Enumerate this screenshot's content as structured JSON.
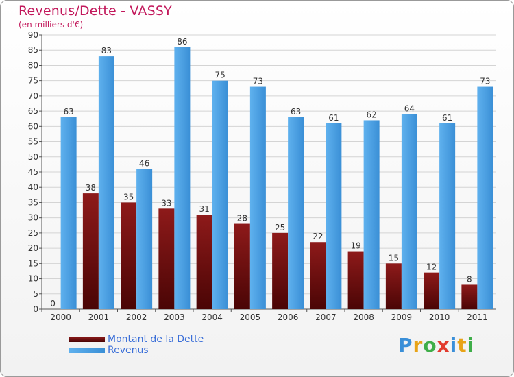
{
  "chart_data": {
    "type": "bar",
    "title": "Revenus/Dette - VASSY",
    "subtitle": "(en milliers d'€)",
    "categories": [
      "2000",
      "2001",
      "2002",
      "2003",
      "2004",
      "2005",
      "2006",
      "2007",
      "2008",
      "2009",
      "2010",
      "2011"
    ],
    "series": [
      {
        "name": "Montant de la Dette",
        "color": "#7a0f0f",
        "values": [
          0,
          38,
          35,
          33,
          31,
          28,
          25,
          22,
          19,
          15,
          12,
          8
        ]
      },
      {
        "name": "Revenus",
        "color": "#4ea3e6",
        "values": [
          63,
          83,
          46,
          86,
          75,
          73,
          63,
          61,
          62,
          64,
          61,
          73
        ]
      }
    ],
    "ylim": [
      0,
      90
    ],
    "yticks": [
      0,
      5,
      10,
      15,
      20,
      25,
      30,
      35,
      40,
      45,
      50,
      55,
      60,
      65,
      70,
      75,
      80,
      85,
      90
    ],
    "grid": true,
    "legend_position": "bottom-left"
  },
  "logo": {
    "text": "Proxiti",
    "letter_colors": [
      "#3a8fd8",
      "#e8a317",
      "#3fae49",
      "#e23b2e",
      "#3a8fd8",
      "#e8a317",
      "#3fae49"
    ]
  }
}
